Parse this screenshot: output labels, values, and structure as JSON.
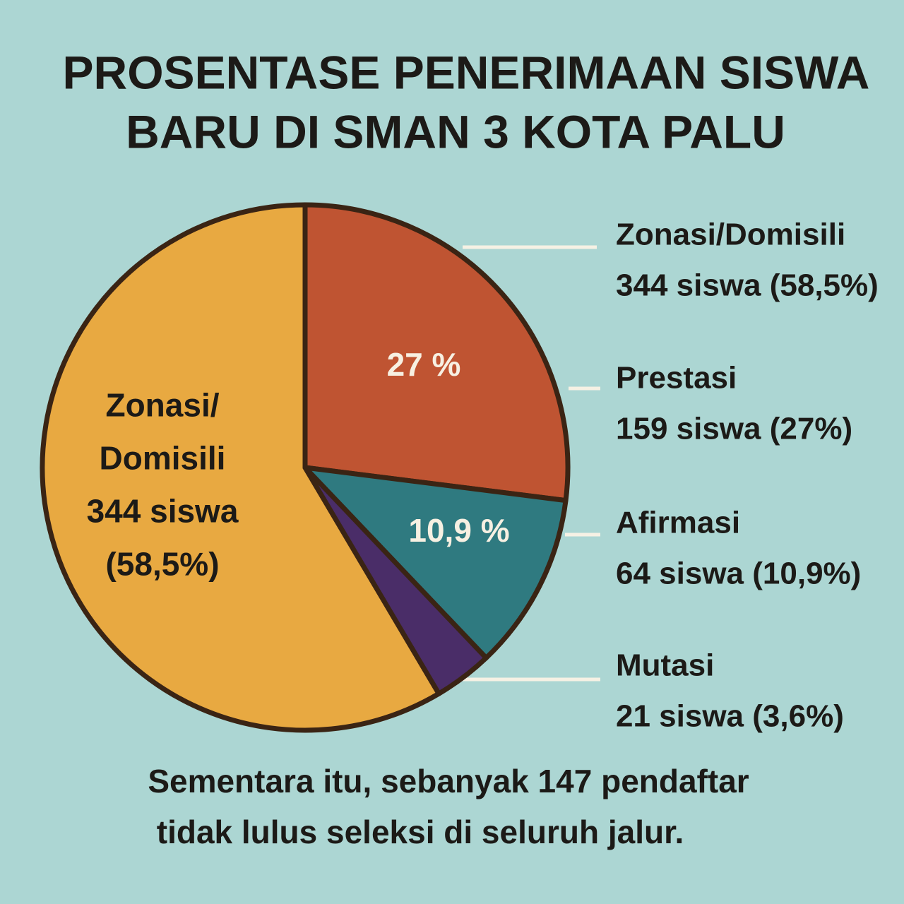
{
  "chart_data": {
    "type": "pie",
    "title": [
      "PROSENTASE PENERIMAAN SISWA",
      "BARU DI SMAN 3 KOTA PALU"
    ],
    "categories": [
      "Zonasi/Domisili",
      "Prestasi",
      "Afirmasi",
      "Mutasi"
    ],
    "values": [
      58.5,
      27,
      10.9,
      3.6
    ],
    "value_labels": [
      "344 siswa (58,5%)",
      "159 siswa (27%)",
      "64 siswa (10,9%)",
      "21 siswa (3,6%)"
    ],
    "inner_labels": [
      [
        "Zonasi/",
        "Domisili",
        "344 siswa",
        "(58,5%)"
      ],
      [
        "27 %"
      ],
      [
        "10,9 %"
      ],
      []
    ],
    "colors": [
      "#e8a941",
      "#bf5432",
      "#2f7a80",
      "#4a2d68"
    ],
    "note": [
      "Sementara itu, sebanyak 147 pendaftar",
      "tidak lulus seleksi di seluruh jalur."
    ]
  }
}
